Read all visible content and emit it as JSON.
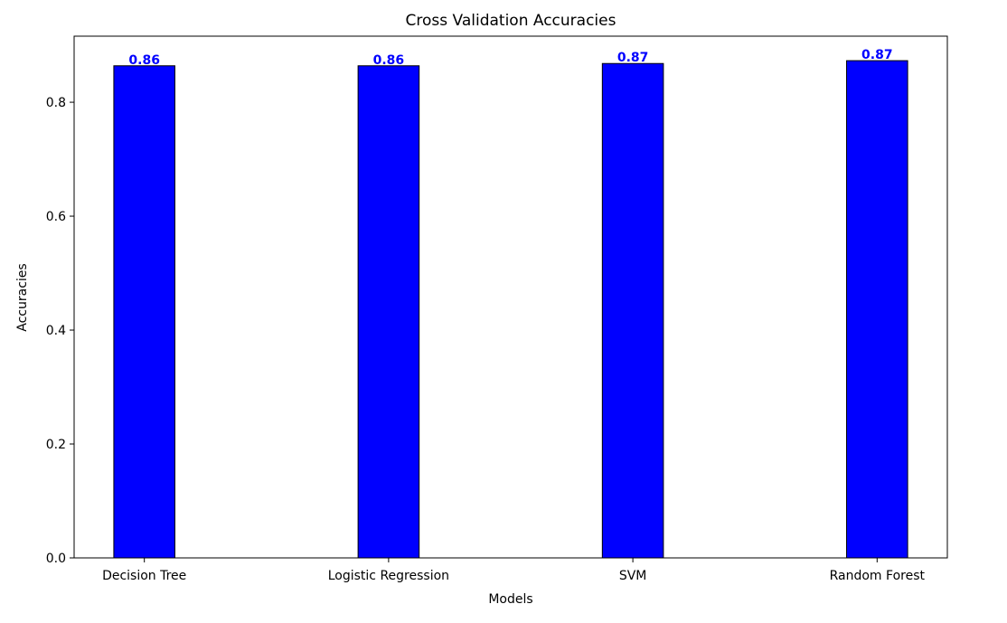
{
  "chart_data": {
    "type": "bar",
    "title": "Cross Validation Accuracies",
    "xlabel": "Models",
    "ylabel": "Accuracies",
    "categories": [
      "Decision Tree",
      "Logistic Regression",
      "SVM",
      "Random Forest"
    ],
    "values": [
      0.864,
      0.864,
      0.868,
      0.873
    ],
    "data_labels": [
      "0.86",
      "0.86",
      "0.87",
      "0.87"
    ],
    "ylim": [
      0,
      0.916
    ],
    "yticks": [
      0.0,
      0.2,
      0.4,
      0.6,
      0.8
    ],
    "ytick_labels": [
      "0.0",
      "0.2",
      "0.4",
      "0.6",
      "0.8"
    ],
    "grid": false,
    "colors": {
      "bar_fill": "#0000ff",
      "bar_edge": "#000000",
      "data_label": "#0000ff"
    }
  }
}
